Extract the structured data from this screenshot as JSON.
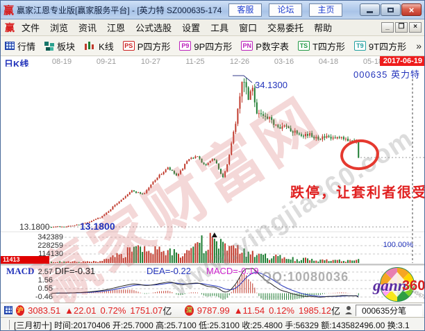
{
  "window": {
    "logo": "赢",
    "title": "赢家江恩专业版[赢家服务平台] - [英力特  SZ000635-174",
    "quick_buttons": [
      "客服",
      "论坛",
      "主页"
    ]
  },
  "menu": {
    "logo": "赢",
    "items": [
      "文件",
      "浏览",
      "资讯",
      "江恩",
      "公式选股",
      "设置",
      "工具",
      "窗口",
      "交易委托",
      "帮助"
    ]
  },
  "toolbar": {
    "more": "»",
    "items": [
      {
        "icon": "grid",
        "badge": "",
        "color": "",
        "label": "行情"
      },
      {
        "icon": "blocks",
        "badge": "",
        "color": "",
        "label": "板块"
      },
      {
        "icon": "candles",
        "badge": "",
        "color": "",
        "label": "K线"
      },
      {
        "icon": "badge",
        "badge": "PS",
        "color": "#cc2222",
        "label": "P四方形"
      },
      {
        "icon": "badge",
        "badge": "P9",
        "color": "#bb22bb",
        "label": "9P四方形"
      },
      {
        "icon": "badge",
        "badge": "PN",
        "color": "#bb22bb",
        "label": "P数字表"
      },
      {
        "icon": "badge",
        "badge": "TS",
        "color": "#229944",
        "label": "T四方形"
      },
      {
        "icon": "badge",
        "badge": "T9",
        "color": "#22a0a0",
        "label": "9T四方形"
      }
    ]
  },
  "chart": {
    "period_label": "日K线",
    "dates": [
      "08-19",
      "09-21",
      "10-27",
      "11-25",
      "12-26",
      "03-16",
      "04-18",
      "05-18"
    ],
    "current_date": "2017-06-19",
    "stock_label": "000635 英力特",
    "peak_label": "34.1300",
    "base_label": "13.1800",
    "base_label_blue": "13.1800",
    "annotation": "跌停，让套利者很受伤",
    "watermark_main": "赢家财富网",
    "watermark_url": "www.yingjia360.com",
    "right_percent": "100.00%"
  },
  "volume": {
    "axis_labels": [
      "342389",
      "228259",
      "114130"
    ],
    "highlight_label": "11413"
  },
  "macd": {
    "label": "MACD",
    "axis_labels": [
      "2.57",
      "1.56",
      "0.55",
      "-0.46"
    ],
    "dif_label": "DIF=-0.31",
    "dea_label": "DEA=-0.22",
    "macd_label": "MACD=-0.19",
    "qq_watermark": "QQ:10080036",
    "logo_gann": "gann",
    "logo_360": "360",
    "logo_digits": "23456789"
  },
  "index_bar": {
    "sh_badge": "沪",
    "sh_value": "3083.51",
    "sh_change": "▲22.01",
    "sh_percent": "0.72%",
    "sh_amount": "1751.07",
    "sh_unit": "亿",
    "sz_badge": "深",
    "sz_value": "9787.99",
    "sz_change": "▲11.54",
    "sz_percent": "0.12%",
    "sz_amount": "1985.12",
    "sz_unit": "亿",
    "right_label": "000635分笔"
  },
  "status_bar": {
    "text": "[三月初十] 时间:20170406 开:25.7000 高:25.7100 低:25.3100 收:25.4800 手:56329 额:143582496.00 换:3.1"
  },
  "colors": {
    "up": "#c0392b",
    "down": "#1e7d32",
    "accent_blue": "#2233bb",
    "highlight_red": "#e02020"
  },
  "chart_data": {
    "type": "candlestick",
    "title": "日K线 英力特 000635",
    "dates": [
      "08-19",
      "09-21",
      "10-27",
      "11-25",
      "12-26",
      "03-16",
      "04-18",
      "05-18",
      "2017-06-19"
    ],
    "price_peak": 34.13,
    "price_base": 13.18,
    "price_range": [
      13.0,
      35.0
    ],
    "candle_count": 146,
    "trend": [
      [
        0,
        13.2
      ],
      [
        0.06,
        13.3
      ],
      [
        0.12,
        13.8
      ],
      [
        0.17,
        14.8
      ],
      [
        0.22,
        16.8
      ],
      [
        0.26,
        18.3
      ],
      [
        0.3,
        17.8
      ],
      [
        0.34,
        20.0
      ],
      [
        0.38,
        21.5
      ],
      [
        0.41,
        20.3
      ],
      [
        0.44,
        22.3
      ],
      [
        0.47,
        23.3
      ],
      [
        0.5,
        21.8
      ],
      [
        0.53,
        22.8
      ],
      [
        0.56,
        20.0
      ],
      [
        0.575,
        22.5
      ],
      [
        0.595,
        27.0
      ],
      [
        0.615,
        31.5
      ],
      [
        0.625,
        33.5
      ],
      [
        0.64,
        31.0
      ],
      [
        0.655,
        32.5
      ],
      [
        0.67,
        29.5
      ],
      [
        0.7,
        28.3
      ],
      [
        0.73,
        27.8
      ],
      [
        0.76,
        27.2
      ],
      [
        0.8,
        26.6
      ],
      [
        0.84,
        26.1
      ],
      [
        0.88,
        25.8
      ],
      [
        0.92,
        25.6
      ],
      [
        0.96,
        25.5
      ],
      [
        1.0,
        25.45
      ]
    ],
    "last_candle": {
      "open": 25.4,
      "close": 22.93,
      "note": "跌停 limit-down"
    },
    "peak_frac": 0.625,
    "volume_axis": [
      342389,
      228259,
      114130
    ],
    "volume_max_display": 420000,
    "volume_peak": 342389,
    "volume_peak_frac": 0.528,
    "last_volume": 56329,
    "volume_profile": [
      [
        0,
        16000
      ],
      [
        0.16,
        20000
      ],
      [
        0.2,
        70000
      ],
      [
        0.25,
        180000
      ],
      [
        0.4,
        140000
      ],
      [
        0.47,
        230000
      ],
      [
        0.53,
        300000
      ],
      [
        0.58,
        200000
      ],
      [
        0.66,
        110000
      ],
      [
        0.78,
        60000
      ],
      [
        0.9,
        35000
      ],
      [
        1.0,
        30000
      ]
    ],
    "macd": {
      "axis": [
        2.57,
        1.56,
        0.55,
        -0.46
      ],
      "dif": -0.31,
      "dea": -0.22,
      "hist": -0.19
    }
  }
}
